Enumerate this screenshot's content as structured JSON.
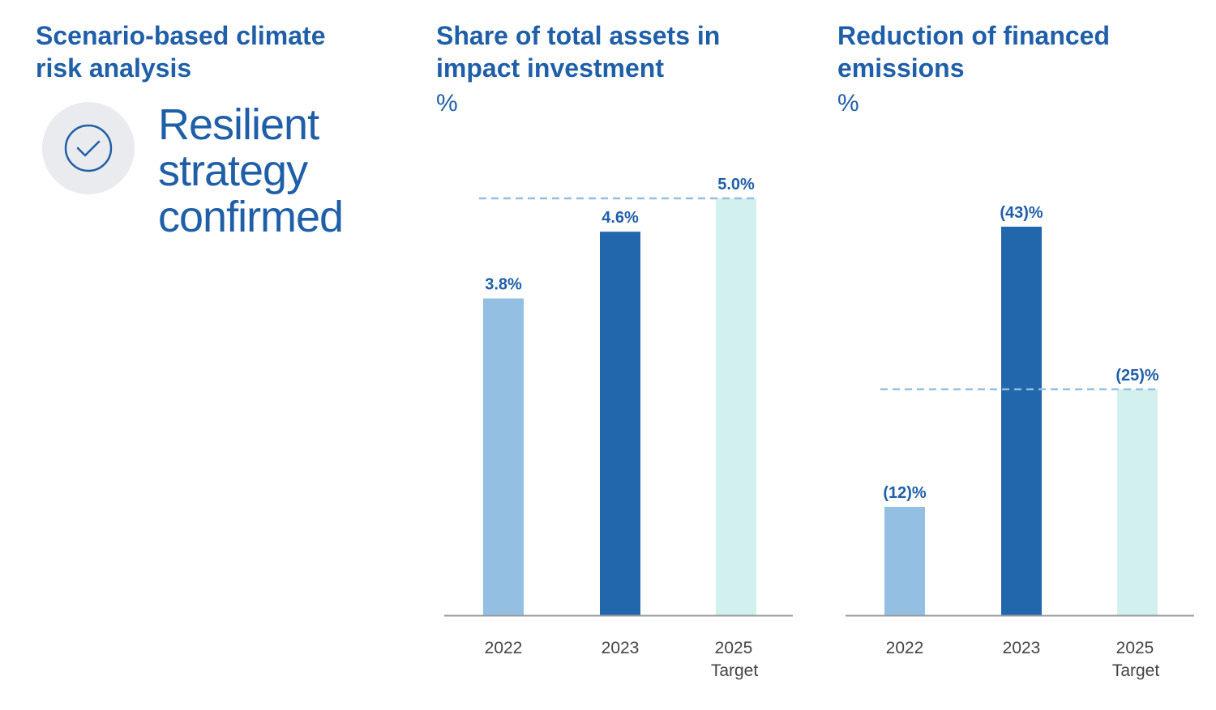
{
  "panel1": {
    "title_lines": [
      "Scenario-based climate",
      "risk analysis"
    ],
    "status_lines": [
      "Resilient",
      "strategy",
      "confirmed"
    ],
    "icon": "check-circle-icon"
  },
  "colors": {
    "title": "#1f5fa8",
    "bar_2022": "#93bfe2",
    "bar_2023": "#2266ab",
    "bar_target": "#d1f0ee",
    "value_label": "#1f5fa8",
    "axis": "#9a9a9a",
    "dashed_line": "#93bfe2",
    "tick": "#444444"
  },
  "chart_data": [
    {
      "type": "bar",
      "title_lines": [
        "Share of total assets in",
        "impact investment"
      ],
      "unit": "%",
      "categories": [
        "2022",
        "2023",
        "2025"
      ],
      "category_sublabels": [
        "",
        "",
        "Target"
      ],
      "values": [
        3.8,
        4.6,
        5.0
      ],
      "value_labels": [
        "3.8%",
        "4.6%",
        "5.0%"
      ],
      "reference_line": 5.0,
      "ylim": [
        0,
        5.0
      ]
    },
    {
      "type": "bar",
      "title_lines": [
        "Reduction of financed",
        "emissions"
      ],
      "unit": "%",
      "categories": [
        "2022",
        "2023",
        "2025"
      ],
      "category_sublabels": [
        "",
        "",
        "Target"
      ],
      "values": [
        12,
        43,
        25
      ],
      "value_labels": [
        "(12)%",
        "(43)%",
        "(25)%"
      ],
      "reference_line": 25,
      "ylim": [
        0,
        43
      ]
    }
  ]
}
